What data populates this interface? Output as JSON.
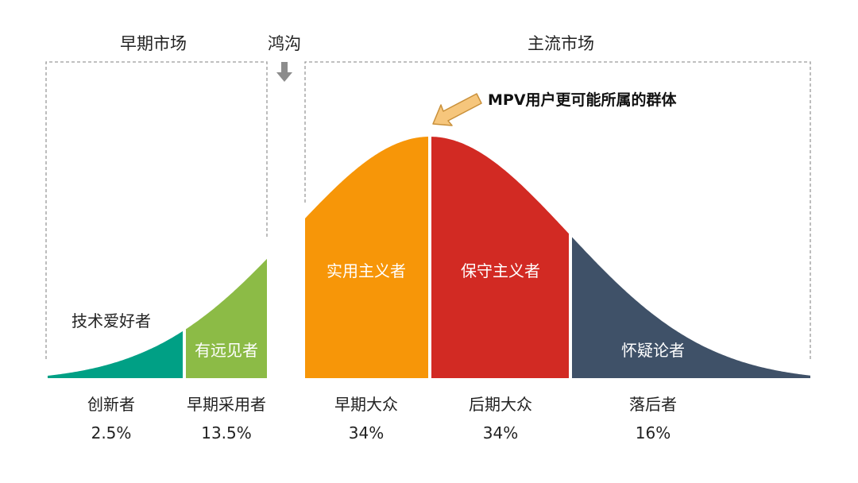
{
  "headers": {
    "early_market": "早期市场",
    "chasm": "鸿沟",
    "mainstream_market": "主流市场"
  },
  "callout": "MPV用户更可能所属的群体",
  "enthusiasts_label": "技术爱好者",
  "colors": {
    "innovators": "#00a085",
    "early_adopters": "#8cbb46",
    "early_majority": "#f79608",
    "late_majority": "#d22a23",
    "laggards": "#3f5168",
    "bracket": "#9a9a9a",
    "arrow_fill": "#f6c67c",
    "arrow_stroke": "#c9903a"
  },
  "segments": [
    {
      "key": "innovators",
      "inner_label": "",
      "name": "创新者",
      "percent": "2.5%",
      "share": 2.5
    },
    {
      "key": "early_adopters",
      "inner_label": "有远见者",
      "name": "早期采用者",
      "percent": "13.5%",
      "share": 13.5
    },
    {
      "key": "early_majority",
      "inner_label": "实用主义者",
      "name": "早期大众",
      "percent": "34%",
      "share": 34
    },
    {
      "key": "late_majority",
      "inner_label": "保守主义者",
      "name": "后期大众",
      "percent": "34%",
      "share": 34
    },
    {
      "key": "laggards",
      "inner_label": "怀疑论者",
      "name": "落后者",
      "percent": "16%",
      "share": 16
    }
  ]
}
